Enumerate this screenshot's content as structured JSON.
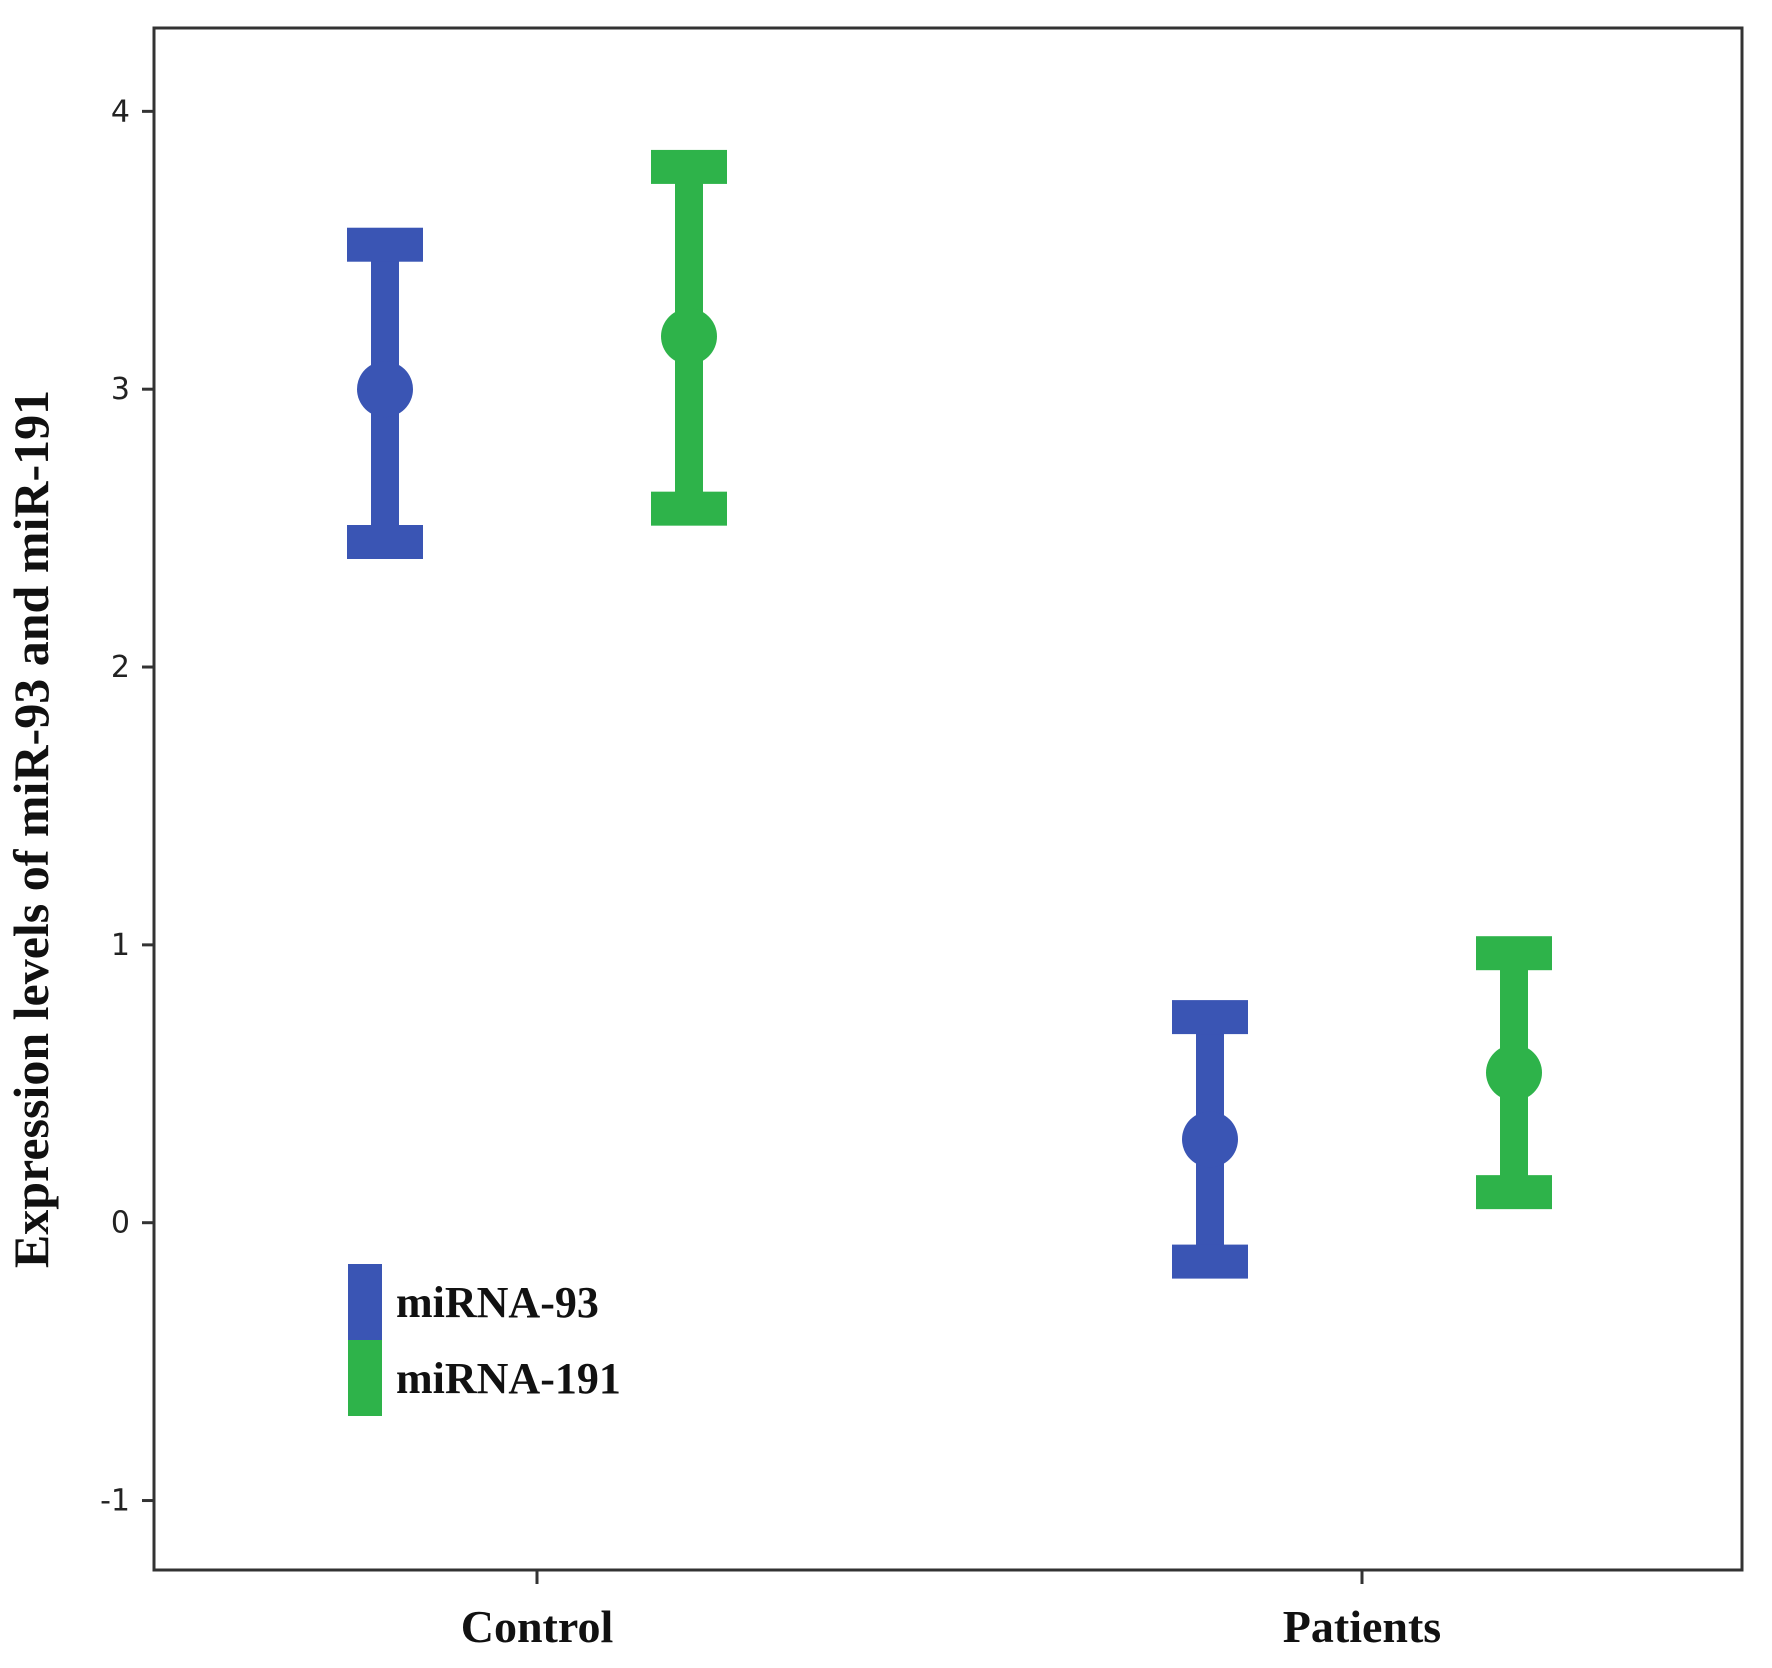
{
  "chart_data": {
    "type": "errorbar",
    "title": "",
    "xlabel": "",
    "ylabel": "Expression levels of miR-93 and miR-191",
    "categories": [
      "Control",
      "Patients"
    ],
    "ylim": [
      -1.25,
      4.3
    ],
    "yticks": [
      -1,
      0,
      1,
      2,
      3,
      4
    ],
    "grid": false,
    "legend_position": "bottom-left",
    "series": [
      {
        "name": "miRNA-93",
        "color": "#3a55b4",
        "mean": [
          3.0,
          0.3
        ],
        "lower": [
          2.45,
          -0.14
        ],
        "upper": [
          3.52,
          0.74
        ]
      },
      {
        "name": "miRNA-191",
        "color": "#2eb34a",
        "mean": [
          3.19,
          0.54
        ],
        "lower": [
          2.57,
          0.11
        ],
        "upper": [
          3.8,
          0.97
        ]
      }
    ]
  }
}
